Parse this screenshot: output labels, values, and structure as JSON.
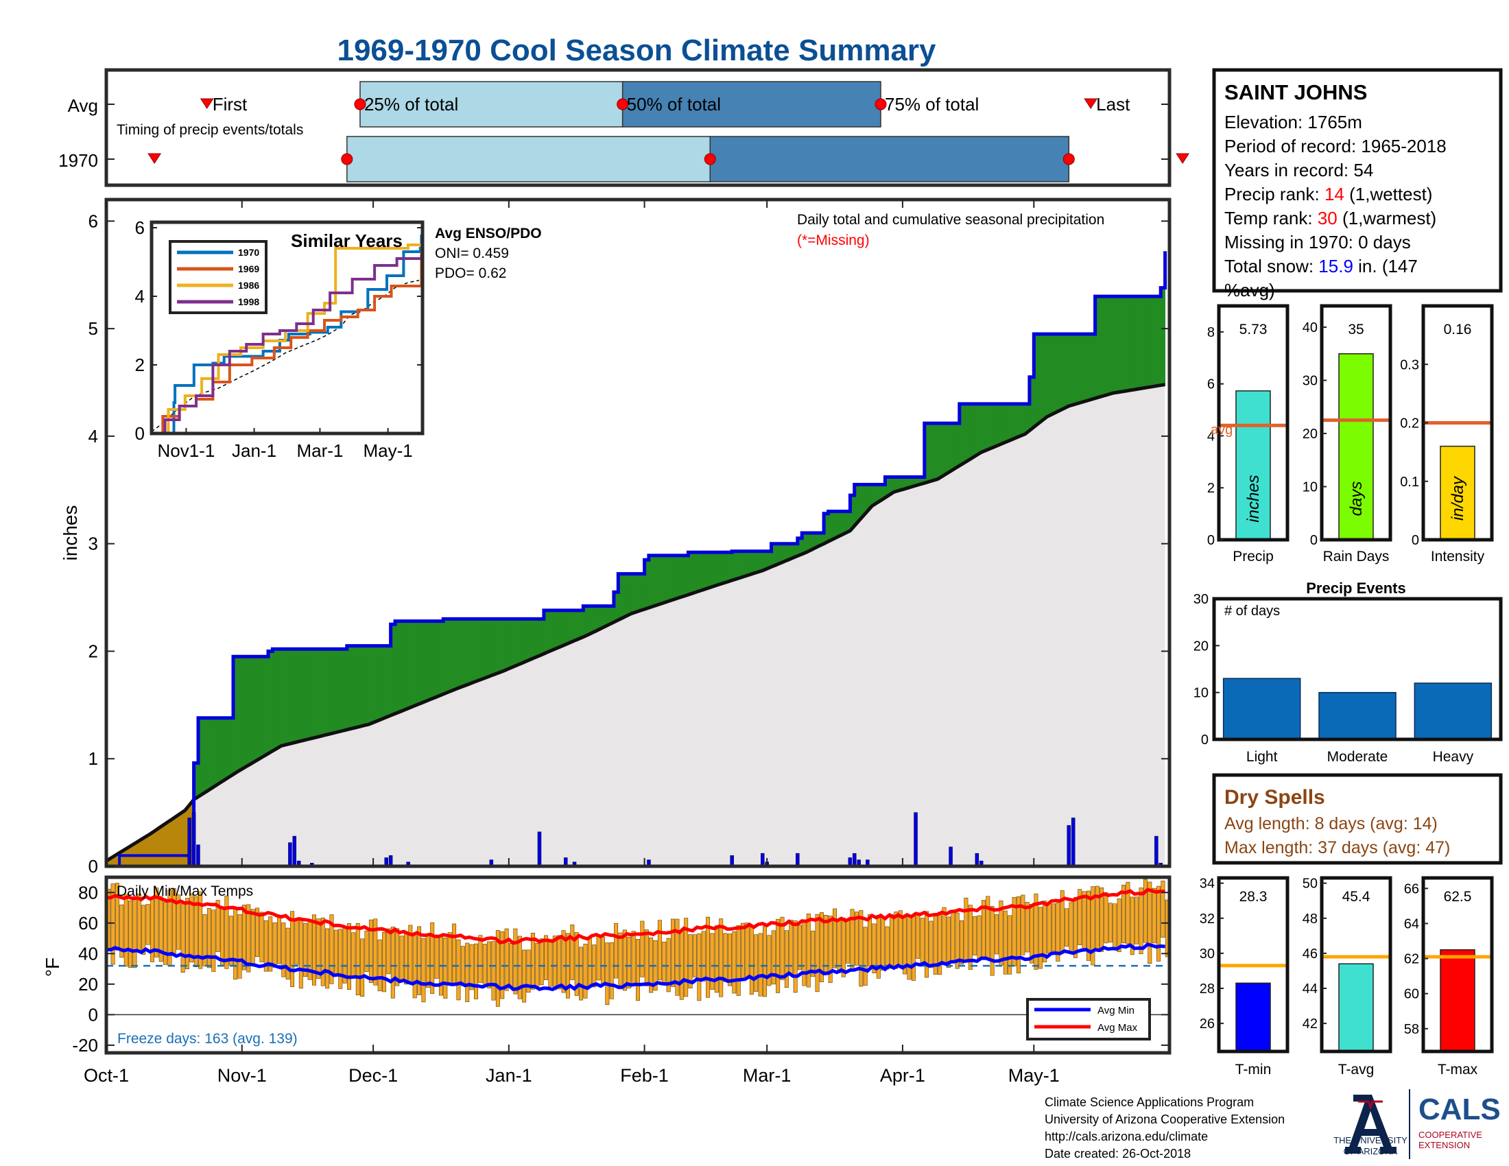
{
  "title": "1969-1970 Cool Season Climate Summary",
  "timing_panel": {
    "rows": [
      "Avg",
      "1970"
    ],
    "caption": "Timing of precip events/totals",
    "labels": {
      "first": "First",
      "p25": "25% of total",
      "p50": "50% of total",
      "p75": "75% of total",
      "last": "Last"
    },
    "avg": {
      "first": 23,
      "p25": 58,
      "p50": 118,
      "p75": 177,
      "last": 225
    },
    "y1970": {
      "first": 11,
      "p25": 55,
      "p50": 138,
      "p75": 220,
      "last": 246
    }
  },
  "station": {
    "name": "SAINT JOHNS",
    "elevation_label": "Elevation: 1765m",
    "period_label": "Period of record: 1965-2018",
    "years_label": "Years in record: 54",
    "precip_rank_prefix": "Precip rank: ",
    "precip_rank": "14",
    "precip_rank_suffix": " (1,wettest)",
    "temp_rank_prefix": "Temp rank: ",
    "temp_rank": "30",
    "temp_rank_suffix": " (1,warmest)",
    "missing_label": "Missing in 1970: 0 days",
    "snow_prefix": "Total snow: ",
    "snow_value": "15.9",
    "snow_suffix": " in. (147",
    "snow_suffix2": "%avg)"
  },
  "main_panel": {
    "ylabel": "inches",
    "caption": "Daily total and cumulative seasonal precipitation",
    "missing_note": "(*=Missing)",
    "month_labels": [
      "Oct-1",
      "Nov-1",
      "Dec-1",
      "Jan-1",
      "Feb-1",
      "Mar-1",
      "Apr-1",
      "May-1"
    ],
    "ylim": [
      0,
      6.2
    ]
  },
  "inset": {
    "title": "Similar Years",
    "enso_title": "Avg ENSO/PDO",
    "oni_label": "ONI= 0.459",
    "pdo_label": "PDO= 0.62",
    "x_ticks": [
      "Nov1-1",
      "Jan-1",
      "Mar-1",
      "May-1"
    ],
    "ylim": [
      0,
      6
    ],
    "legend": [
      "1970",
      "1969",
      "1986",
      "1998"
    ]
  },
  "bar_panels": [
    {
      "label": "Precip",
      "value_label": "5.73",
      "value": 5.73,
      "avg": 4.4,
      "avg_text": "avg",
      "unit": "inches",
      "color": "#40e0d0",
      "ylim": [
        0,
        9
      ],
      "ticks": [
        "0",
        "2",
        "4",
        "6",
        "8"
      ]
    },
    {
      "label": "Rain Days",
      "value_label": "35",
      "value": 35,
      "avg": 22.5,
      "unit": "days",
      "color": "#7cfc00",
      "ylim": [
        0,
        44
      ],
      "ticks": [
        "0",
        "10",
        "20",
        "30",
        "40"
      ]
    },
    {
      "label": "Intensity",
      "value_label": "0.16",
      "value": 0.16,
      "avg": 0.2,
      "unit": "in/day",
      "color": "#ffd700",
      "ylim": [
        0,
        0.4
      ],
      "ticks": [
        "0",
        "0.1",
        "0.2",
        "0.3"
      ]
    }
  ],
  "precip_events": {
    "title": "Precip Events",
    "subtitle": "# of days",
    "categories": [
      "Light",
      "Moderate",
      "Heavy"
    ],
    "values": [
      13,
      10,
      12
    ],
    "ylim": [
      0,
      30
    ],
    "ticks": [
      "0",
      "10",
      "20",
      "30"
    ]
  },
  "dry_spells": {
    "title": "Dry Spells",
    "avg_line": "Avg length: 8 days (avg: 14)",
    "max_line": "Max length: 37 days (avg: 47)"
  },
  "temp_panel": {
    "title": "Daily Min/Max Temps",
    "ylabel": "°F",
    "freeze_label": "Freeze days: 163 (avg. 139)",
    "legend_min": "Avg Min",
    "legend_max": "Avg Max",
    "ylim": [
      -25,
      90
    ],
    "ticks": [
      "80",
      "60",
      "40",
      "20",
      "0",
      "-20"
    ]
  },
  "temp_bars": [
    {
      "label": "T-min",
      "value_label": "28.3",
      "value": 28.3,
      "avg": 29.3,
      "color": "#0000ff",
      "ylim": [
        24.4,
        34.3
      ],
      "ticks": [
        "26",
        "28",
        "30",
        "32",
        "34"
      ]
    },
    {
      "label": "T-avg",
      "value_label": "45.4",
      "value": 45.4,
      "avg": 45.8,
      "color": "#40e0d0",
      "ylim": [
        40.4,
        50.3
      ],
      "ticks": [
        "42",
        "44",
        "46",
        "48",
        "50"
      ]
    },
    {
      "label": "T-max",
      "value_label": "62.5",
      "value": 62.5,
      "avg": 62.1,
      "color": "#ff0000",
      "ylim": [
        56.7,
        66.6
      ],
      "ticks": [
        "58",
        "60",
        "62",
        "64",
        "66"
      ]
    }
  ],
  "footer": {
    "line1": "Climate Science Applications Program",
    "line2": "University of Arizona Cooperative Extension",
    "line3": "http://cals.arizona.edu/climate",
    "line4": " Date created: 26-Oct-2018",
    "ua_line1": "THE UNIVERSITY",
    "ua_line2": "OF ARIZONA",
    "cals": "CALS",
    "coop1": "COOPERATIVE",
    "coop2": "EXTENSION"
  },
  "colors": {
    "title": "#0b4f94",
    "cumulative": "#0000dd",
    "surplus": "#228b22",
    "average_fill": "#e8e6e6",
    "deficit": "#b8860b",
    "light_blue": "#add8e6",
    "steel_blue": "#4682b4",
    "rank_red": "#ff0000",
    "snow_blue": "#0000ff",
    "dry_brown": "#8b4513",
    "orange_avg": "#e0622a",
    "event_blue": "#0a6ab8",
    "temp_orange": "#f5a623",
    "ua_navy": "#0c234b",
    "ua_red": "#ab0520"
  },
  "chart_data": [
    {
      "type": "area",
      "title": "Daily total and cumulative seasonal precipitation",
      "ylabel": "inches",
      "x_unit": "day of season (Oct-1 = 0)",
      "month_ticks": [
        "Oct-1",
        "Nov-1",
        "Dec-1",
        "Jan-1",
        "Feb-1",
        "Mar-1",
        "Apr-1",
        "May-1"
      ],
      "ylim": [
        0,
        6.2
      ],
      "series": [
        {
          "name": "1970",
          "x": [
            0,
            19,
            20,
            21,
            28,
            29,
            37,
            38,
            42,
            55,
            56,
            65,
            66,
            76,
            77,
            88,
            91,
            99,
            100,
            108,
            109,
            115,
            116,
            117,
            123,
            124,
            132,
            133,
            142,
            143,
            152,
            158,
            159,
            164,
            165,
            170,
            171,
            178,
            186,
            187,
            194,
            195,
            211,
            212,
            226,
            233,
            234,
            241,
            242
          ],
          "values": [
            0,
            0,
            0.96,
            1.38,
            1.38,
            1.95,
            2.0,
            2.02,
            2.02,
            2.05,
            2.05,
            2.25,
            2.28,
            2.28,
            2.3,
            2.3,
            2.3,
            2.3,
            2.38,
            2.38,
            2.42,
            2.42,
            2.55,
            2.72,
            2.85,
            2.89,
            2.89,
            2.92,
            2.92,
            2.93,
            3.0,
            3.05,
            3.1,
            3.28,
            3.3,
            3.45,
            3.55,
            3.62,
            3.62,
            4.12,
            4.12,
            4.3,
            4.55,
            4.95,
            5.3,
            5.3,
            5.3,
            5.38,
            5.72
          ]
        },
        {
          "name": "",
          "x": [
            0,
            10,
            18,
            20,
            30,
            40,
            60,
            80,
            91,
            110,
            120,
            140,
            150,
            160,
            170,
            175,
            180,
            190,
            200,
            210,
            215,
            220,
            230,
            242
          ],
          "values": [
            0.05,
            0.3,
            0.52,
            0.62,
            0.88,
            1.12,
            1.32,
            1.65,
            1.82,
            2.15,
            2.35,
            2.62,
            2.75,
            2.92,
            3.12,
            3.35,
            3.48,
            3.6,
            3.85,
            4.02,
            4.18,
            4.28,
            4.4,
            4.48
          ]
        }
      ],
      "daily_precip_x": [
        19,
        20,
        21,
        42,
        43,
        44,
        47,
        64,
        65,
        69,
        88,
        99,
        105,
        107,
        124,
        143,
        150,
        151,
        158,
        170,
        171,
        172,
        174,
        185,
        193,
        199,
        200,
        220,
        221,
        240,
        241
      ],
      "daily_precip_values": [
        0.45,
        0.5,
        0.2,
        0.22,
        0.28,
        0.05,
        0.03,
        0.08,
        0.1,
        0.04,
        0.06,
        0.32,
        0.08,
        0.04,
        0.06,
        0.1,
        0.12,
        0.04,
        0.12,
        0.08,
        0.12,
        0.06,
        0.06,
        0.5,
        0.18,
        0.12,
        0.05,
        0.38,
        0.45,
        0.28,
        0.03
      ]
    },
    {
      "type": "line",
      "title": "Similar Years",
      "x_ticks": [
        "Nov1-1",
        "Jan-1",
        "Mar-1",
        "May-1"
      ],
      "ylim": [
        0,
        6
      ],
      "series": [
        {
          "name": "1970",
          "x": [
            0,
            20,
            21,
            37,
            38,
            55,
            65,
            100,
            115,
            123,
            142,
            158,
            170,
            186,
            194,
            211,
            226,
            241,
            242
          ],
          "values": [
            0,
            0.9,
            1.4,
            1.4,
            2.0,
            2.05,
            2.25,
            2.4,
            2.72,
            2.9,
            2.95,
            3.1,
            3.55,
            3.6,
            4.2,
            4.6,
            5.3,
            5.4,
            5.8
          ]
        },
        {
          "name": "1969",
          "x": [
            0,
            10,
            25,
            40,
            55,
            70,
            90,
            110,
            125,
            140,
            155,
            170,
            185,
            200,
            215,
            230,
            242
          ],
          "values": [
            0,
            0.5,
            0.8,
            1.0,
            1.5,
            2.0,
            2.2,
            2.5,
            2.8,
            3.0,
            3.3,
            3.4,
            3.6,
            4.0,
            4.3,
            4.3,
            5.3
          ]
        },
        {
          "name": "1986",
          "x": [
            0,
            15,
            30,
            45,
            60,
            80,
            100,
            120,
            140,
            155,
            165,
            175,
            190,
            210,
            230,
            242
          ],
          "values": [
            0,
            0.7,
            1.1,
            1.6,
            2.3,
            2.5,
            2.7,
            3.0,
            3.5,
            3.8,
            5.4,
            5.4,
            5.4,
            5.4,
            5.5,
            5.5
          ]
        },
        {
          "name": "1998",
          "x": [
            0,
            12,
            25,
            40,
            55,
            70,
            85,
            100,
            115,
            130,
            145,
            160,
            180,
            200,
            220,
            242
          ],
          "values": [
            0,
            0.4,
            0.8,
            1.1,
            2.0,
            2.4,
            2.6,
            2.9,
            3.0,
            3.2,
            3.6,
            4.1,
            4.5,
            4.9,
            5.1,
            5.2
          ]
        }
      ]
    },
    {
      "type": "bar",
      "title": "Precip Events",
      "categories": [
        "Light",
        "Moderate",
        "Heavy"
      ],
      "values": [
        13,
        10,
        12
      ],
      "ylim": [
        0,
        30
      ]
    },
    {
      "type": "bar",
      "categories": [
        "Precip",
        "Rain Days",
        "Intensity"
      ],
      "values": [
        5.73,
        35,
        0.16
      ],
      "averages": [
        4.4,
        22.5,
        0.2
      ]
    },
    {
      "type": "bar",
      "categories": [
        "T-min",
        "T-avg",
        "T-max"
      ],
      "values": [
        28.3,
        45.4,
        62.5
      ],
      "averages": [
        29.3,
        45.8,
        62.1
      ]
    },
    {
      "type": "line",
      "title": "Daily Min/Max Temps",
      "ylabel": "°F",
      "ylim": [
        -25,
        90
      ],
      "series": [
        {
          "name": "Avg Max",
          "x": [
            0,
            15,
            30,
            45,
            60,
            75,
            91,
            105,
            122,
            135,
            152,
            165,
            182,
            195,
            212,
            225,
            242
          ],
          "values": [
            78,
            75,
            69,
            62,
            56,
            52,
            48,
            50,
            53,
            56,
            59,
            62,
            65,
            68,
            72,
            77,
            82
          ]
        },
        {
          "name": "Avg Min",
          "x": [
            0,
            15,
            30,
            45,
            60,
            75,
            91,
            105,
            122,
            135,
            152,
            165,
            182,
            195,
            212,
            225,
            242
          ],
          "values": [
            44,
            40,
            35,
            29,
            24,
            20,
            18,
            18,
            20,
            22,
            25,
            28,
            32,
            35,
            38,
            42,
            46
          ]
        }
      ],
      "freeze_line": 32
    }
  ]
}
